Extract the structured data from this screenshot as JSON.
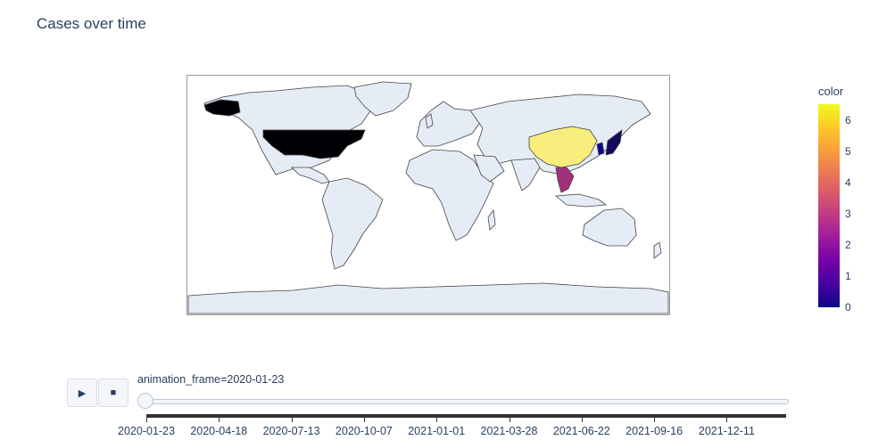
{
  "title": "Cases over time",
  "map": {
    "projection": "equirectangular",
    "land_color": "#e5ecf6",
    "border_color": "#444444",
    "countries": [
      {
        "name": "United States",
        "value": 0
      },
      {
        "name": "China",
        "value": 6.3
      },
      {
        "name": "Japan",
        "value": 0.3
      },
      {
        "name": "Thailand",
        "value": 1.8
      },
      {
        "name": "South Korea",
        "value": 0.3
      }
    ]
  },
  "colorbar": {
    "title": "color",
    "colorscale": [
      "#0d0887",
      "#46039f",
      "#7201a8",
      "#9c179e",
      "#bd3786",
      "#d8576b",
      "#ed7953",
      "#fb9f3a",
      "#fdca26",
      "#f0f921"
    ],
    "ticks": [
      "0",
      "1",
      "2",
      "3",
      "4",
      "5",
      "6"
    ],
    "range": [
      0,
      6.5
    ]
  },
  "animation": {
    "play_icon": "play-icon",
    "stop_icon": "stop-icon",
    "current_label": "animation_frame=2020-01-23",
    "frame_ticks": [
      "2020-01-23",
      "2020-04-18",
      "2020-07-13",
      "2020-10-07",
      "2021-01-01",
      "2021-03-28",
      "2021-06-22",
      "2021-09-16",
      "2021-12-11"
    ]
  }
}
